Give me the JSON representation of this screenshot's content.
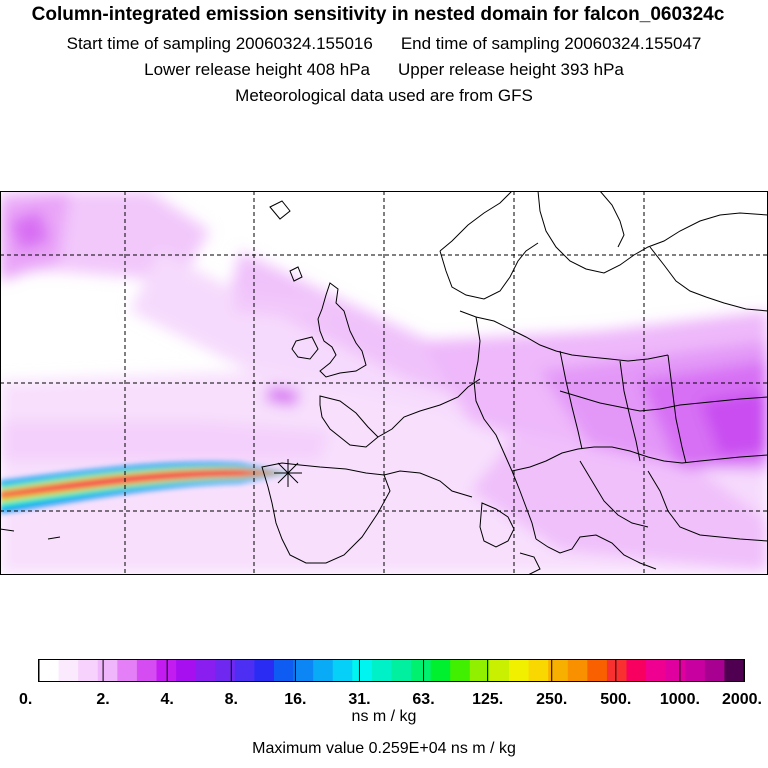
{
  "header": {
    "title": "Column-integrated emission sensitivity in nested domain for falcon_060324c",
    "start_label": "Start time of sampling 20060324.155016",
    "end_label": "End time of sampling 20060324.155047",
    "lower_label": "Lower release height  408 hPa",
    "upper_label": "Upper release height  393 hPa",
    "met_label": "Meteorological data used are from GFS"
  },
  "colorbar": {
    "tick_labels": [
      "0.",
      "2.",
      "4.",
      "8.",
      "16.",
      "31.",
      "63.",
      "125.",
      "250.",
      "500.",
      "1000.",
      "2000."
    ],
    "colors": [
      "#ffffff",
      "#fbeafe",
      "#f6d2fc",
      "#efb6fb",
      "#e47ff7",
      "#d54cf2",
      "#c21cf0",
      "#a80ff0",
      "#8a1df0",
      "#6f28f0",
      "#4c2ff2",
      "#2a2cf4",
      "#0f5cf3",
      "#0d86f5",
      "#0aabf6",
      "#07d0f8",
      "#00f5f0",
      "#00f0c8",
      "#00f0a0",
      "#00f070",
      "#00f030",
      "#40f000",
      "#90f000",
      "#c8f000",
      "#f0f000",
      "#f8d800",
      "#f8b000",
      "#f89000",
      "#f86000",
      "#f83030",
      "#f80060",
      "#f00090",
      "#e000a0",
      "#c800a0",
      "#a80090",
      "#500050"
    ],
    "units": "ns m / kg",
    "max_value_label": "Maximum value  0.259E+04 ns m / kg"
  },
  "map": {
    "release_marker": "release-location",
    "plume_colors": [
      "#0a8cf5",
      "#00f0d0",
      "#c8f000",
      "#f8b000",
      "#f80060",
      "#e0006e"
    ]
  }
}
